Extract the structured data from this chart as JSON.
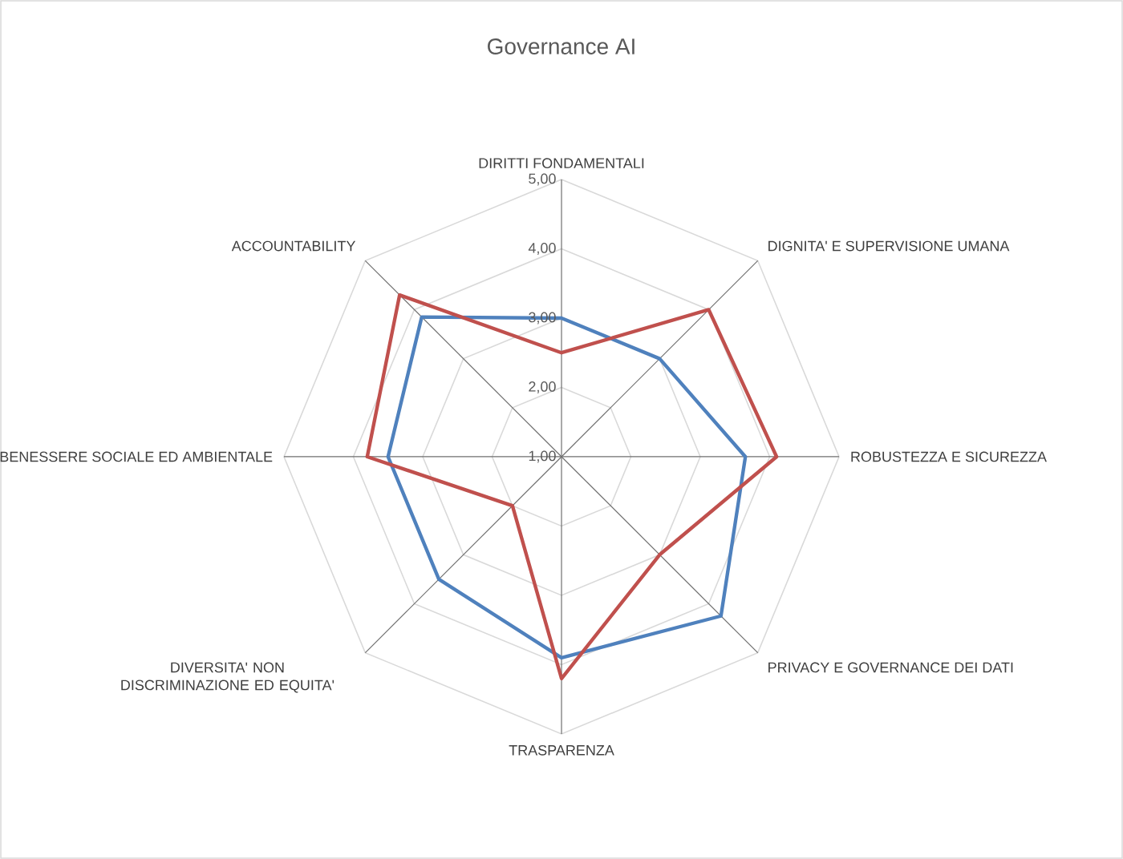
{
  "chart_data": {
    "type": "radar",
    "title": "Governance AI",
    "categories": [
      "DIRITTI FONDAMENTALI",
      "DIGNITA' E SUPERVISIONE UMANA",
      "ROBUSTEZZA E SICUREZZA",
      "PRIVACY E GOVERNANCE DEI DATI",
      "TRASPARENZA",
      "DIVERSITA' NON DISCRIMINAZIONE ED EQUITA'",
      "BENESSERE SOCIALE ED AMBIENTALE",
      "ACCOUNTABILITY"
    ],
    "series": [
      {
        "color": "#4f81bd",
        "values": [
          3.0,
          3.0,
          3.65,
          4.25,
          3.9,
          3.5,
          3.5,
          3.85
        ]
      },
      {
        "color": "#c0504d",
        "values": [
          2.5,
          4.0,
          4.1,
          3.0,
          4.2,
          2.0,
          3.8,
          4.3
        ]
      }
    ],
    "ylim": [
      1,
      5
    ],
    "yticks": [
      {
        "value": 1,
        "label": "1,00"
      },
      {
        "value": 2,
        "label": "2,00"
      },
      {
        "value": 3,
        "label": "3,00"
      },
      {
        "value": 4,
        "label": "4,00"
      },
      {
        "value": 5,
        "label": "5,00"
      }
    ],
    "grid": true
  }
}
